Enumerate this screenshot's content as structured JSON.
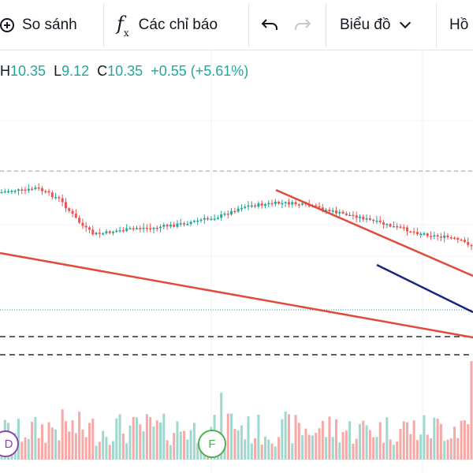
{
  "toolbar": {
    "compare_label": "So sánh",
    "indicators_label": "Các chỉ báo",
    "chart_type_label": "Biểu đồ",
    "overflow_label": "Hồ"
  },
  "legend": {
    "high": "10.35",
    "low": "9.12",
    "close": "10.35",
    "change": "+0.55",
    "change_pct": "(+5.61%)",
    "high_prefix": "H",
    "low_prefix": "L",
    "close_prefix": "C"
  },
  "markers": {
    "dividend": "D",
    "financials": "F"
  },
  "colors": {
    "up": "#26a69a",
    "down": "#ef5350",
    "trendline_red": "#e04b3c",
    "trendline_blue": "#1a237e",
    "dashed_line": "#2a2e39",
    "dotted_line": "#26a69a",
    "marker_d": "#8e44ad",
    "marker_f": "#4caf50"
  },
  "chart_data": {
    "type": "candlestick",
    "close_path_relative": [
      0.22,
      0.2,
      0.21,
      0.18,
      0.23,
      0.28,
      0.4,
      0.52,
      0.6,
      0.59,
      0.57,
      0.56,
      0.54,
      0.55,
      0.53,
      0.52,
      0.5,
      0.48,
      0.46,
      0.44,
      0.4,
      0.35,
      0.34,
      0.33,
      0.32,
      0.32,
      0.33,
      0.35,
      0.37,
      0.4,
      0.42,
      0.44,
      0.47,
      0.5,
      0.53,
      0.55,
      0.58,
      0.6,
      0.62,
      0.63,
      0.66,
      0.7
    ],
    "volumes_relative": [
      0.35,
      0.3,
      0.4,
      0.45,
      0.55,
      0.6,
      0.5,
      0.45,
      0.4,
      0.55,
      0.48,
      0.42,
      0.5,
      0.44,
      0.46,
      0.52,
      0.4,
      0.38,
      0.45,
      0.8,
      0.6,
      0.42,
      0.4,
      0.38,
      0.5,
      0.44,
      0.42,
      0.48,
      0.55,
      0.4,
      0.42,
      0.5,
      0.45,
      0.48,
      0.52,
      0.46,
      0.5,
      0.55,
      0.6,
      0.7,
      1.0
    ]
  }
}
